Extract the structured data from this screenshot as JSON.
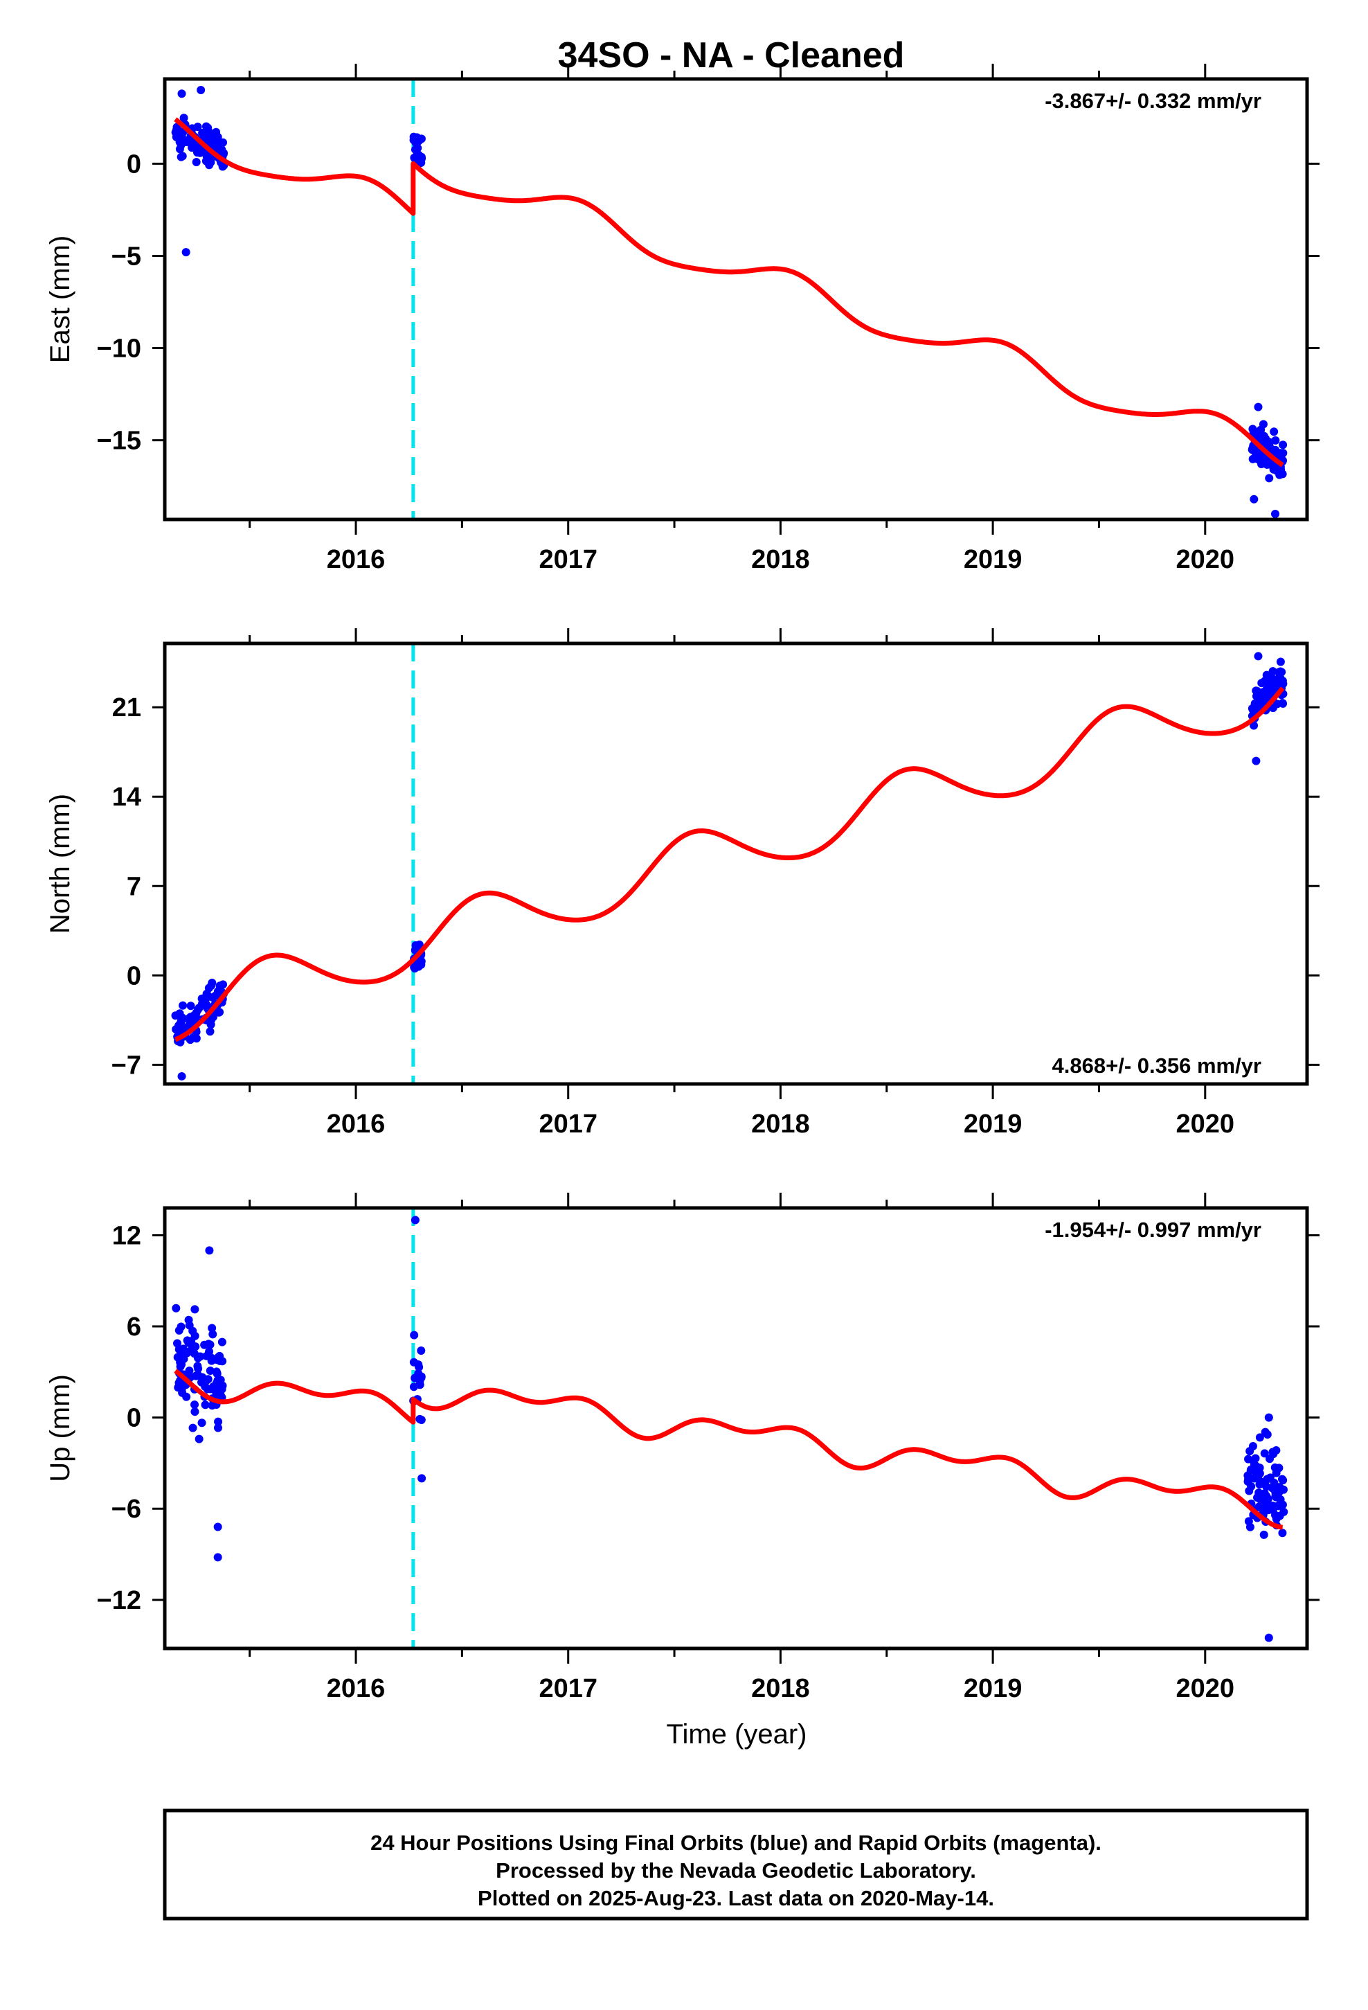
{
  "title": "34SO  - NA - Cleaned",
  "colors": {
    "final_orbit_points": "#0000ff",
    "model_fit": "#ff0000",
    "equipment_change": "#00e5ee",
    "frame": "#000000"
  },
  "chart_data": [
    {
      "type": "scatter",
      "name": "east",
      "ylabel": "East (mm)",
      "xlabel": "",
      "rate": "-3.867+/- 0.332 mm/yr",
      "xlim": [
        2015.1,
        2020.48
      ],
      "ylim": [
        -19.3,
        4.6
      ],
      "xticks": [
        2016,
        2017,
        2018,
        2019,
        2020
      ],
      "xtick_labels": [
        "2016",
        "2017",
        "2018",
        "2019",
        "2020"
      ],
      "yticks": [
        0,
        -5,
        -10,
        -15
      ],
      "ytick_labels": [
        "0",
        "−5",
        "−10",
        "−15"
      ],
      "equipment_change": 2016.27,
      "offset": 2.7,
      "model": {
        "trend": -3.867,
        "bias": 1.7,
        "annual_amp": 0.85,
        "annual_phase": 1.4,
        "semi_amp": 0.15,
        "semi_phase": 0.5
      },
      "segments": [
        {
          "start": 2015.15,
          "end": 2015.38,
          "center": 1.0,
          "spread": 1.0,
          "count": 90,
          "outliers": [
            [
              2015.2,
              -4.8
            ],
            [
              2015.18,
              3.8
            ],
            [
              2015.27,
              4.0
            ]
          ]
        },
        {
          "start": 2016.27,
          "end": 2016.31,
          "center": 0.8,
          "spread": 0.8,
          "count": 18,
          "outliers": []
        },
        {
          "start": 2020.22,
          "end": 2020.37,
          "center": -15.6,
          "spread": 0.9,
          "count": 85,
          "outliers": [
            [
              2020.23,
              -18.2
            ],
            [
              2020.33,
              -19.0
            ],
            [
              2020.25,
              -13.2
            ]
          ]
        }
      ]
    },
    {
      "type": "scatter",
      "name": "north",
      "ylabel": "North (mm)",
      "xlabel": "",
      "rate": "4.868+/- 0.356 mm/yr",
      "xlim": [
        2015.1,
        2020.48
      ],
      "ylim": [
        -8.5,
        26.0
      ],
      "xticks": [
        2016,
        2017,
        2018,
        2019,
        2020
      ],
      "xtick_labels": [
        "2016",
        "2017",
        "2018",
        "2019",
        "2020"
      ],
      "yticks": [
        -7,
        0,
        7,
        14,
        21
      ],
      "ytick_labels": [
        "−7",
        "0",
        "7",
        "14",
        "21"
      ],
      "equipment_change": 2016.27,
      "offset": 0.0,
      "model": {
        "trend": 4.868,
        "bias": -3.0,
        "annual_amp": 2.2,
        "annual_phase": 4.1,
        "semi_amp": 0.2,
        "semi_phase": 1.0
      },
      "segments": [
        {
          "start": 2015.15,
          "end": 2015.38,
          "center": -3.2,
          "spread": 1.3,
          "count": 95,
          "outliers": [
            [
              2015.18,
              -7.9
            ]
          ]
        },
        {
          "start": 2016.27,
          "end": 2016.31,
          "center": 1.3,
          "spread": 0.8,
          "count": 18,
          "outliers": []
        },
        {
          "start": 2020.22,
          "end": 2020.37,
          "center": 21.8,
          "spread": 1.2,
          "count": 90,
          "outliers": [
            [
              2020.24,
              16.8
            ],
            [
              2020.25,
              25.0
            ]
          ]
        }
      ]
    },
    {
      "type": "scatter",
      "name": "up",
      "ylabel": "Up (mm)",
      "xlabel": "Time (year)",
      "rate": "-1.954+/- 0.997 mm/yr",
      "xlim": [
        2015.1,
        2020.48
      ],
      "ylim": [
        -15.2,
        13.8
      ],
      "xticks": [
        2016,
        2017,
        2018,
        2019,
        2020
      ],
      "xtick_labels": [
        "2016",
        "2017",
        "2018",
        "2019",
        "2020"
      ],
      "yticks": [
        12,
        6,
        0,
        -6,
        -12
      ],
      "ytick_labels": [
        "12",
        "6",
        "0",
        "−6",
        "−12"
      ],
      "equipment_change": 2016.27,
      "offset": 1.5,
      "model": {
        "trend": -1.954,
        "bias": 2.7,
        "annual_amp": 0.7,
        "annual_phase": 2.3,
        "semi_amp": 0.55,
        "semi_phase": 0.3
      },
      "segments": [
        {
          "start": 2015.15,
          "end": 2015.38,
          "center": 3.0,
          "spread": 3.0,
          "count": 100,
          "outliers": [
            [
              2015.35,
              -9.2
            ],
            [
              2015.31,
              11.0
            ],
            [
              2015.35,
              -7.2
            ]
          ]
        },
        {
          "start": 2016.27,
          "end": 2016.31,
          "center": 2.2,
          "spread": 2.3,
          "count": 18,
          "outliers": [
            [
              2016.28,
              13.0
            ],
            [
              2016.31,
              -4.0
            ]
          ]
        },
        {
          "start": 2020.2,
          "end": 2020.37,
          "center": -5.0,
          "spread": 2.6,
          "count": 95,
          "outliers": [
            [
              2020.3,
              -14.5
            ],
            [
              2020.3,
              0.0
            ]
          ]
        }
      ]
    }
  ],
  "footer": {
    "line1": "24 Hour Positions Using Final Orbits (blue) and Rapid Orbits (magenta).",
    "line2": "Processed by the Nevada Geodetic Laboratory.",
    "line3": "Plotted on 2025-Aug-23. Last data on 2020-May-14."
  }
}
